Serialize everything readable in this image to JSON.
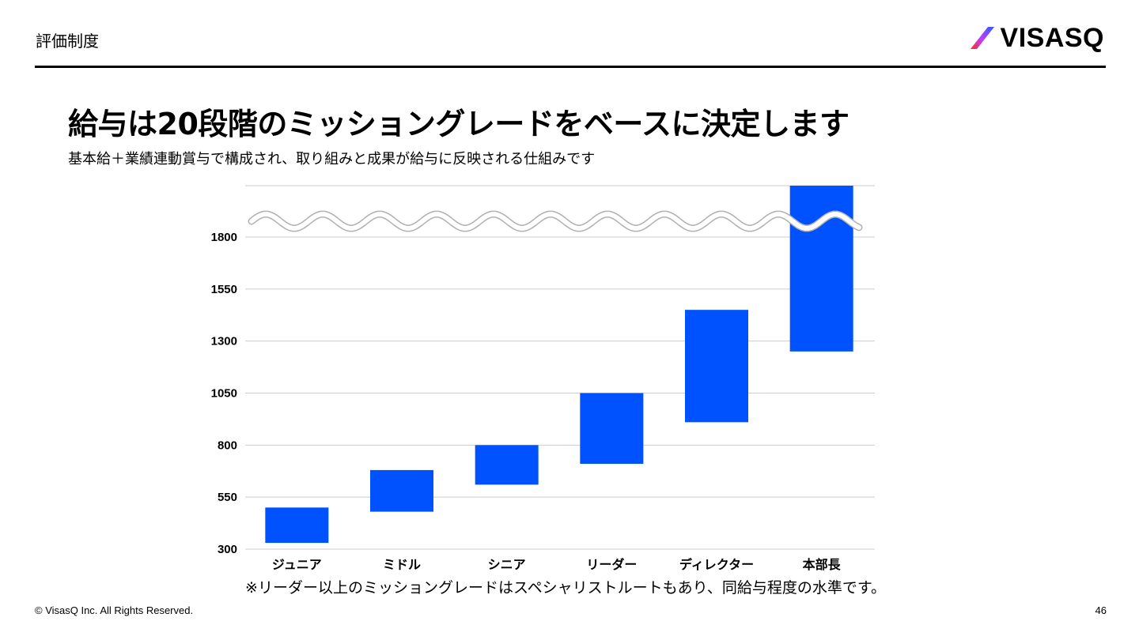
{
  "header": {
    "section_title": "評価制度",
    "logo_text": "VISASQ",
    "logo_icon": "slash-logo-icon"
  },
  "main": {
    "title": "給与は20段階のミッショングレードをベースに決定します",
    "subtitle": "基本給＋業績連動賞与で構成され、取り組みと成果が給与に反映される仕組みです"
  },
  "chart_data": {
    "type": "bar",
    "subtype": "floating-range",
    "categories": [
      "ジュニア",
      "ミドル",
      "シニア",
      "リーダー",
      "ディレクター",
      "本部長"
    ],
    "ranges": [
      [
        330,
        500
      ],
      [
        480,
        680
      ],
      [
        610,
        800
      ],
      [
        710,
        1050
      ],
      [
        910,
        1450
      ],
      [
        1250,
        2050
      ]
    ],
    "y_ticks": [
      "300",
      "550",
      "800",
      "1050",
      "1300",
      "1550",
      "1800"
    ],
    "ylim": [
      300,
      2050
    ],
    "axis_break": true,
    "bar_color": "#0052FF",
    "grid": true
  },
  "footer": {
    "note": "※リーダー以上のミッショングレードはスペシャリストルートもあり、同給与程度の水準です。",
    "copyright": "© VisasQ Inc. All Rights Reserved.",
    "page_number": "46"
  }
}
